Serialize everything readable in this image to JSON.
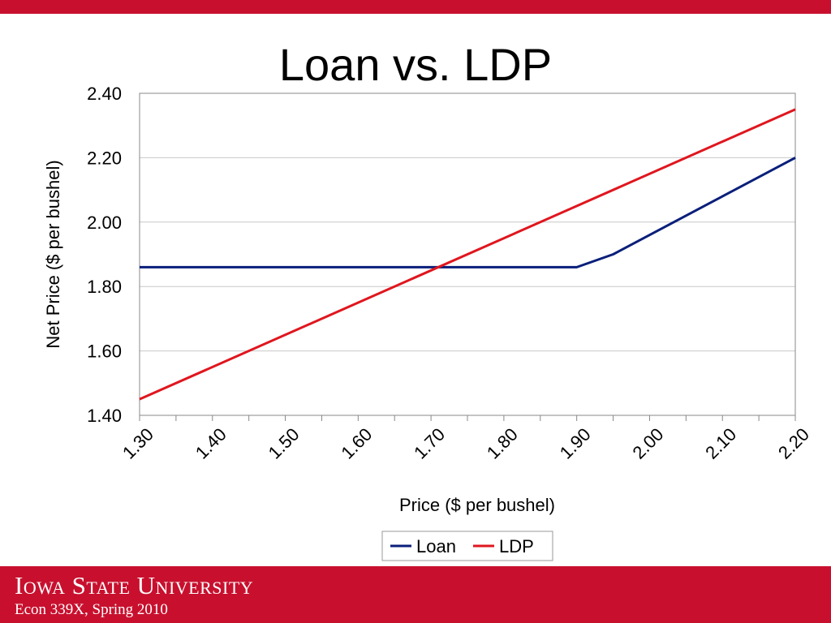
{
  "slide": {
    "title": "Loan vs. LDP",
    "university": "Iowa State University",
    "course": "Econ 339X, Spring 2010"
  },
  "colors": {
    "brand_red": "#c8102e",
    "loan": "#0a1f7a",
    "ldp": "#e0161e"
  },
  "chart_data": {
    "type": "line",
    "xlabel": "Price ($ per bushel)",
    "ylabel": "Net Price ($ per bushel)",
    "x": [
      1.3,
      1.4,
      1.5,
      1.6,
      1.7,
      1.8,
      1.9,
      2.0,
      2.1,
      2.2
    ],
    "x_tick_labels": [
      "1.30",
      "1.40",
      "1.50",
      "1.60",
      "1.70",
      "1.80",
      "1.90",
      "2.00",
      "2.10",
      "2.20"
    ],
    "y_tick_labels": [
      "1.40",
      "1.60",
      "1.80",
      "2.00",
      "2.20",
      "2.40"
    ],
    "xlim": [
      1.3,
      2.2
    ],
    "ylim": [
      1.4,
      2.4
    ],
    "grid": true,
    "legend": "bottom",
    "series": [
      {
        "name": "Loan",
        "color": "#0a1f7a",
        "points": [
          [
            1.3,
            1.86
          ],
          [
            1.85,
            1.86
          ],
          [
            1.9,
            1.86
          ],
          [
            1.95,
            1.9
          ],
          [
            2.2,
            2.2
          ]
        ]
      },
      {
        "name": "LDP",
        "color": "#e0161e",
        "points": [
          [
            1.3,
            1.45
          ],
          [
            2.2,
            2.35
          ]
        ]
      }
    ]
  }
}
